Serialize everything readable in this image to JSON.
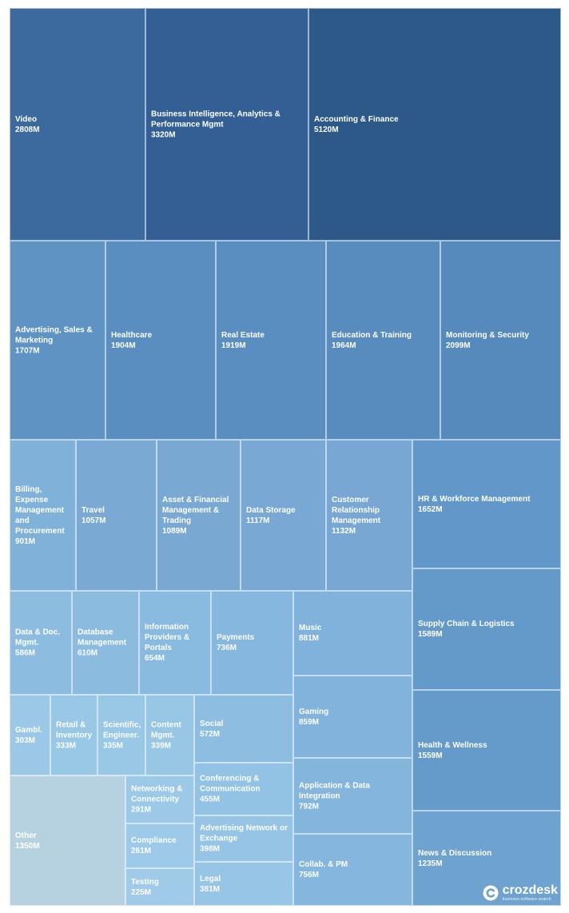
{
  "chart_data": {
    "type": "treemap",
    "value_unit": "M",
    "items": [
      {
        "name": "Video",
        "value": 2808,
        "label": "2808M",
        "color": "#3c6a9f"
      },
      {
        "name": "Business Intelligence, Analytics & Performance Mgmt",
        "value": 3320,
        "label": "3320M",
        "color": "#335f95"
      },
      {
        "name": "Accounting & Finance",
        "value": 5120,
        "label": "5120M",
        "color": "#2c5988"
      },
      {
        "name": "Advertising, Sales & Marketing",
        "value": 1707,
        "label": "1707M",
        "color": "#5e93c4"
      },
      {
        "name": "Healthcare",
        "value": 1904,
        "label": "1904M",
        "color": "#5a8ec0"
      },
      {
        "name": "Real Estate",
        "value": 1919,
        "label": "1919M",
        "color": "#5a8ec0"
      },
      {
        "name": "Education & Training",
        "value": 1964,
        "label": "1964M",
        "color": "#588cbf"
      },
      {
        "name": "Monitoring & Security",
        "value": 2099,
        "label": "2099M",
        "color": "#5689bc"
      },
      {
        "name": "Billing, Expense Management and Procurement",
        "value": 901,
        "label": "901M",
        "color": "#7fb1d9"
      },
      {
        "name": "Travel",
        "value": 1057,
        "label": "1057M",
        "color": "#7aaad4"
      },
      {
        "name": "Asset & Financial Management & Trading",
        "value": 1089,
        "label": "1089M",
        "color": "#79a9d3"
      },
      {
        "name": "Data Storage",
        "value": 1117,
        "label": "1117M",
        "color": "#78a8d3"
      },
      {
        "name": "Customer Relationship Management",
        "value": 1132,
        "label": "1132M",
        "color": "#77a7d2"
      },
      {
        "name": "HR & Workforce Management",
        "value": 1652,
        "label": "1652M",
        "color": "#6298c9"
      },
      {
        "name": "Supply Chain & Logistics",
        "value": 1589,
        "label": "1589M",
        "color": "#639aca"
      },
      {
        "name": "Health & Wellness",
        "value": 1559,
        "label": "1559M",
        "color": "#649bcb"
      },
      {
        "name": "News & Discussion",
        "value": 1235,
        "label": "1235M",
        "color": "#6ea2cf"
      },
      {
        "name": "Data & Doc. Mgmt.",
        "value": 586,
        "label": "586M",
        "color": "#8cbde1"
      },
      {
        "name": "Database Management",
        "value": 610,
        "label": "610M",
        "color": "#8bbce0"
      },
      {
        "name": "Information Providers & Portals",
        "value": 654,
        "label": "654M",
        "color": "#89bae0"
      },
      {
        "name": "Payments",
        "value": 736,
        "label": "736M",
        "color": "#86b7de"
      },
      {
        "name": "Music",
        "value": 881,
        "label": "881M",
        "color": "#80b2db"
      },
      {
        "name": "Gaming",
        "value": 859,
        "label": "859M",
        "color": "#81b3dc"
      },
      {
        "name": "Application & Data Integration",
        "value": 792,
        "label": "792M",
        "color": "#84b5dd"
      },
      {
        "name": "Collab. & PM",
        "value": 756,
        "label": "756M",
        "color": "#85b6de"
      },
      {
        "name": "Gambl.",
        "value": 303,
        "label": "303M",
        "color": "#9ac8e6"
      },
      {
        "name": "Retail & Inventory",
        "value": 333,
        "label": "333M",
        "color": "#99c7e6"
      },
      {
        "name": "Scientific, Engineer.",
        "value": 335,
        "label": "335M",
        "color": "#99c7e6"
      },
      {
        "name": "Content Mgmt.",
        "value": 339,
        "label": "339M",
        "color": "#98c6e5"
      },
      {
        "name": "Social",
        "value": 572,
        "label": "572M",
        "color": "#8dbee2"
      },
      {
        "name": "Conferencing & Communication",
        "value": 455,
        "label": "455M",
        "color": "#92c2e4"
      },
      {
        "name": "Advertising Network or Exchange",
        "value": 398,
        "label": "398M",
        "color": "#95c4e4"
      },
      {
        "name": "Legal",
        "value": 381,
        "label": "381M",
        "color": "#96c5e5"
      },
      {
        "name": "Other",
        "value": 1350,
        "label": "1350M",
        "color": "#b6d1e0"
      },
      {
        "name": "Networking & Connectivity",
        "value": 291,
        "label": "291M",
        "color": "#9bc9e7"
      },
      {
        "name": "Compliance",
        "value": 261,
        "label": "261M",
        "color": "#9dcae8"
      },
      {
        "name": "Testing",
        "value": 225,
        "label": "225M",
        "color": "#9fcbe8"
      }
    ]
  },
  "brand": {
    "name": "crozdesk",
    "tagline": "business software search",
    "icon": "crozdesk-logo-icon"
  }
}
